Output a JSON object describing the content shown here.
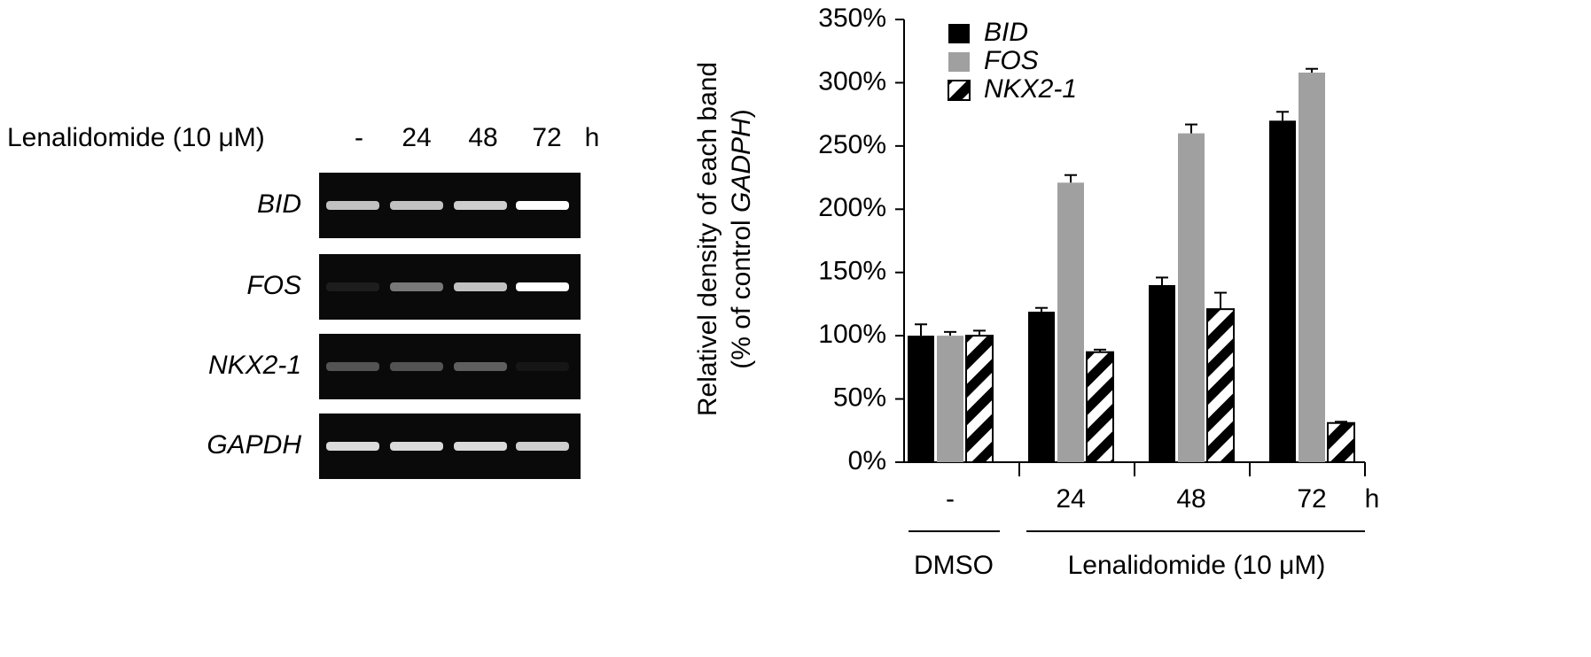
{
  "gel": {
    "header": "Lenalidomide (10 μM)",
    "lanes": [
      "-",
      "24",
      "48",
      "72"
    ],
    "unit": "h",
    "rows": [
      "BID",
      "FOS",
      "NKX2-1",
      "GAPDH"
    ]
  },
  "chart_data": {
    "type": "bar",
    "y_label": "Relativel density of each band",
    "y_label2": [
      "(% of control ",
      "GADPH",
      ")"
    ],
    "categories": [
      "-",
      "24",
      "48",
      "72"
    ],
    "x_unit": "h",
    "groups": [
      "DMSO",
      "Lenalidomide (10 μM)"
    ],
    "series": [
      {
        "name": "BID",
        "color": "#000000",
        "fill": "solid",
        "values": [
          100,
          119,
          140,
          270
        ],
        "errors": [
          9,
          3,
          6,
          7
        ]
      },
      {
        "name": "FOS",
        "color": "#a0a0a0",
        "fill": "solid",
        "values": [
          100,
          221,
          260,
          308
        ],
        "errors": [
          3,
          6,
          7,
          3
        ]
      },
      {
        "name": "NKX2-1",
        "color": "#000000",
        "fill": "hatch",
        "values": [
          100,
          87,
          121,
          31
        ],
        "errors": [
          4,
          2,
          13,
          1
        ]
      }
    ],
    "ylim": [
      0,
      350
    ],
    "yticks": [
      {
        "value": 0,
        "label": "0%"
      },
      {
        "value": 50,
        "label": "50%"
      },
      {
        "value": 100,
        "label": "100%"
      },
      {
        "value": 150,
        "label": "150%"
      },
      {
        "value": 200,
        "label": "200%"
      },
      {
        "value": 250,
        "label": "250%"
      },
      {
        "value": 300,
        "label": "300%"
      },
      {
        "value": 350,
        "label": "350%"
      }
    ],
    "legend": "top-left"
  }
}
